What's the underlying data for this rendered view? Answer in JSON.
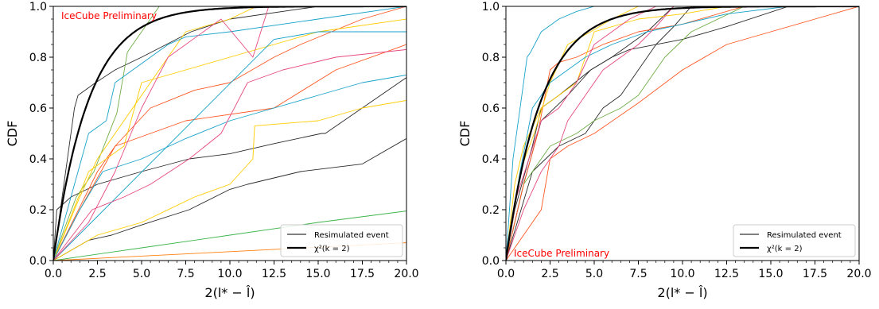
{
  "chart_data": [
    {
      "type": "line",
      "title": "",
      "xlabel": "2(l* − l̂)",
      "ylabel": "CDF",
      "xlim": [
        0,
        20
      ],
      "ylim": [
        0,
        1
      ],
      "x_ticks": [
        "0.0",
        "2.5",
        "5.0",
        "7.5",
        "10.0",
        "12.5",
        "15.0",
        "17.5",
        "20.0"
      ],
      "y_ticks": [
        "0.0",
        "0.2",
        "0.4",
        "0.6",
        "0.8",
        "1.0"
      ],
      "annotation": {
        "text": "IceCube Preliminary",
        "color": "#ff0000",
        "position": "top-left"
      },
      "legend": {
        "position": "bottom-right",
        "entries": [
          "Resimulated event",
          "χ²(k = 2)"
        ]
      },
      "reference_curve": {
        "name": "χ²(k = 2)",
        "color": "#000000",
        "formula": "1 - exp(-x/2)"
      },
      "series": [
        {
          "color": "#2b2b2b",
          "x": [
            0,
            0.4,
            1.2,
            1.4,
            2.4,
            3.5,
            5.0,
            7.8,
            10,
            15,
            20
          ],
          "y": [
            0,
            0.2,
            0.6,
            0.65,
            0.7,
            0.75,
            0.8,
            0.9,
            0.95,
            1.0,
            1.0
          ]
        },
        {
          "color": "#2b2b2b",
          "x": [
            0,
            0.2,
            1.0,
            2.5,
            5.0,
            7.7,
            10,
            12.5,
            15.2,
            15.4,
            20
          ],
          "y": [
            0,
            0.2,
            0.25,
            0.3,
            0.35,
            0.4,
            0.42,
            0.46,
            0.5,
            0.5,
            0.72
          ]
        },
        {
          "color": "#2b2b2b",
          "x": [
            0,
            2,
            3.3,
            5.0,
            7.7,
            10,
            11,
            14,
            17.5,
            20
          ],
          "y": [
            0,
            0.08,
            0.1,
            0.14,
            0.2,
            0.28,
            0.3,
            0.35,
            0.38,
            0.48
          ]
        },
        {
          "color": "#3cb44b",
          "x": [
            0,
            5,
            10,
            15,
            20
          ],
          "y": [
            0,
            0.05,
            0.1,
            0.15,
            0.195
          ]
        },
        {
          "color": "#70ad47",
          "x": [
            0,
            0.6,
            1.3,
            2.3,
            3.6,
            4.2,
            5.0,
            6.0
          ],
          "y": [
            0,
            0.12,
            0.25,
            0.35,
            0.58,
            0.82,
            0.9,
            1.0
          ]
        },
        {
          "color": "#ff7f0e",
          "x": [
            0,
            10,
            20
          ],
          "y": [
            0,
            0.035,
            0.07
          ]
        },
        {
          "color": "#ff5722",
          "x": [
            0,
            1.5,
            3.5,
            5.5,
            8,
            10,
            12.5,
            14,
            17.5,
            20
          ],
          "y": [
            0,
            0.2,
            0.45,
            0.6,
            0.67,
            0.7,
            0.8,
            0.85,
            0.95,
            1.0
          ]
        },
        {
          "color": "#ff5722",
          "x": [
            0,
            2.5,
            3.5,
            7.5,
            12.5,
            16,
            20
          ],
          "y": [
            0,
            0.35,
            0.45,
            0.55,
            0.6,
            0.75,
            0.85
          ]
        },
        {
          "color": "#ffcc00",
          "x": [
            0,
            2.0,
            4.0,
            5.0,
            7.5,
            10,
            12.5,
            15,
            20
          ],
          "y": [
            0,
            0.35,
            0.45,
            0.7,
            0.75,
            0.8,
            0.85,
            0.9,
            0.95
          ]
        },
        {
          "color": "#ffcc00",
          "x": [
            0,
            2.5,
            5.0,
            8.0,
            10,
            11.3,
            11.4,
            15,
            17.5,
            20
          ],
          "y": [
            0,
            0.1,
            0.15,
            0.25,
            0.3,
            0.4,
            0.53,
            0.55,
            0.6,
            0.63
          ]
        },
        {
          "color": "#ffcc00",
          "x": [
            0,
            1.5,
            2.5,
            4.0,
            5.0,
            7.5,
            10,
            11.5
          ],
          "y": [
            0,
            0.25,
            0.4,
            0.55,
            0.65,
            0.9,
            0.95,
            1.0
          ]
        },
        {
          "color": "#17a2c8",
          "x": [
            0,
            1.0,
            2.0,
            3.0,
            3.5,
            4.5,
            5.5,
            6.5,
            7.5,
            10,
            15,
            20
          ],
          "y": [
            0,
            0.25,
            0.5,
            0.55,
            0.7,
            0.75,
            0.8,
            0.85,
            0.88,
            0.9,
            0.95,
            1.0
          ]
        },
        {
          "color": "#17a2c8",
          "x": [
            0,
            1.5,
            2.8,
            5.0,
            7.5,
            10,
            12.5,
            15,
            17.5,
            20
          ],
          "y": [
            0,
            0.2,
            0.35,
            0.4,
            0.48,
            0.55,
            0.6,
            0.65,
            0.7,
            0.73
          ]
        },
        {
          "color": "#17a2c8",
          "x": [
            0,
            12.5,
            15,
            20
          ],
          "y": [
            0,
            0.87,
            0.9,
            0.9
          ]
        },
        {
          "color": "#e64980",
          "x": [
            0,
            2.0,
            3.5,
            5.0,
            6.5,
            8.5,
            9.5,
            11.3,
            12.2
          ],
          "y": [
            0,
            0.15,
            0.35,
            0.6,
            0.8,
            0.9,
            0.95,
            0.8,
            1.0
          ]
        },
        {
          "color": "#e64980",
          "x": [
            0,
            2.2,
            4.0,
            5.5,
            7.7,
            9.5,
            11.0,
            13.0,
            16.0,
            20
          ],
          "y": [
            0,
            0.2,
            0.25,
            0.3,
            0.4,
            0.5,
            0.7,
            0.75,
            0.8,
            0.83
          ]
        }
      ]
    },
    {
      "type": "line",
      "title": "",
      "xlabel": "2(l* − l̂)",
      "ylabel": "CDF",
      "xlim": [
        0,
        20
      ],
      "ylim": [
        0,
        1
      ],
      "x_ticks": [
        "0.0",
        "2.5",
        "5.0",
        "7.5",
        "10.0",
        "12.5",
        "15.0",
        "17.5",
        "20.0"
      ],
      "y_ticks": [
        "0.0",
        "0.2",
        "0.4",
        "0.6",
        "0.8",
        "1.0"
      ],
      "annotation": {
        "text": "IceCube Preliminary",
        "color": "#ff0000",
        "position": "bottom-left"
      },
      "legend": {
        "position": "bottom-right",
        "entries": [
          "Resimulated event",
          "χ²(k = 2)"
        ]
      },
      "reference_curve": {
        "name": "χ²(k = 2)",
        "color": "#000000",
        "formula": "1 - exp(-x/2)"
      },
      "series": [
        {
          "color": "#2b2b2b",
          "x": [
            0,
            0.5,
            1.5,
            2.0,
            3.0,
            4.8,
            6.0,
            7.0,
            8.0,
            9.5
          ],
          "y": [
            0,
            0.2,
            0.45,
            0.6,
            0.65,
            0.75,
            0.8,
            0.85,
            0.9,
            1.0
          ]
        },
        {
          "color": "#2b2b2b",
          "x": [
            0,
            1.5,
            3.0,
            4.5,
            5.5,
            6.5,
            7.5,
            8.5,
            9.5,
            10.5
          ],
          "y": [
            0,
            0.35,
            0.45,
            0.5,
            0.6,
            0.65,
            0.75,
            0.85,
            0.92,
            1.0
          ]
        },
        {
          "color": "#2b2b2b",
          "x": [
            0,
            1.0,
            2.0,
            3.5,
            4.8,
            6.0,
            7.0,
            10,
            12.5,
            16
          ],
          "y": [
            0,
            0.3,
            0.55,
            0.65,
            0.75,
            0.8,
            0.83,
            0.87,
            0.92,
            1.0
          ]
        },
        {
          "color": "#70ad47",
          "x": [
            0,
            1.0,
            2.5,
            4.0,
            5.0,
            6.5,
            7.5,
            9.0,
            10.5,
            13.5
          ],
          "y": [
            0,
            0.3,
            0.45,
            0.5,
            0.55,
            0.6,
            0.65,
            0.8,
            0.9,
            1.0
          ]
        },
        {
          "color": "#ff5722",
          "x": [
            0,
            1.0,
            2.0,
            2.5,
            3.5,
            5.0,
            7.5,
            10,
            12.5,
            15,
            17.5,
            20
          ],
          "y": [
            0,
            0.1,
            0.2,
            0.4,
            0.45,
            0.5,
            0.62,
            0.75,
            0.85,
            0.9,
            0.95,
            1.0
          ]
        },
        {
          "color": "#ff5722",
          "x": [
            0,
            1.0,
            1.8,
            2.5,
            3.0,
            4.0,
            5.5,
            7.5,
            10,
            13.5
          ],
          "y": [
            0,
            0.3,
            0.5,
            0.75,
            0.78,
            0.8,
            0.85,
            0.9,
            0.93,
            1.0
          ]
        },
        {
          "color": "#ffcc00",
          "x": [
            0,
            0.5,
            1.0,
            2.0,
            3.0,
            4.0,
            5.0,
            7.5,
            10,
            12.5
          ],
          "y": [
            0,
            0.3,
            0.45,
            0.6,
            0.65,
            0.7,
            0.9,
            0.95,
            0.97,
            1.0
          ]
        },
        {
          "color": "#ffcc00",
          "x": [
            0,
            0.8,
            1.6,
            2.5,
            3.5,
            4.8,
            6.0,
            7.5
          ],
          "y": [
            0,
            0.35,
            0.5,
            0.7,
            0.85,
            0.9,
            0.95,
            1.0
          ]
        },
        {
          "color": "#17a2c8",
          "x": [
            0,
            0.4,
            0.8,
            1.2,
            1.4,
            2.0,
            3.0,
            4.0,
            5.0
          ],
          "y": [
            0,
            0.4,
            0.6,
            0.8,
            0.82,
            0.9,
            0.95,
            0.98,
            1.0
          ]
        },
        {
          "color": "#17a2c8",
          "x": [
            0,
            0.8,
            1.5,
            2.5,
            3.5,
            4.5,
            6.0,
            8.0,
            10,
            12.5,
            16
          ],
          "y": [
            0,
            0.35,
            0.6,
            0.7,
            0.75,
            0.8,
            0.85,
            0.9,
            0.93,
            0.97,
            1.0
          ]
        },
        {
          "color": "#e64980",
          "x": [
            0,
            1.0,
            2.0,
            3.0,
            3.5,
            4.5,
            5.5,
            6.5,
            7.5,
            8.5,
            9.5
          ],
          "y": [
            0,
            0.2,
            0.35,
            0.45,
            0.55,
            0.65,
            0.75,
            0.8,
            0.85,
            0.92,
            1.0
          ]
        },
        {
          "color": "#e64980",
          "x": [
            0,
            0.6,
            1.3,
            2.0,
            3.0,
            4.0,
            5.0,
            6.0,
            7.0,
            8.5
          ],
          "y": [
            0,
            0.25,
            0.4,
            0.55,
            0.6,
            0.7,
            0.85,
            0.9,
            0.95,
            1.0
          ]
        }
      ]
    }
  ]
}
